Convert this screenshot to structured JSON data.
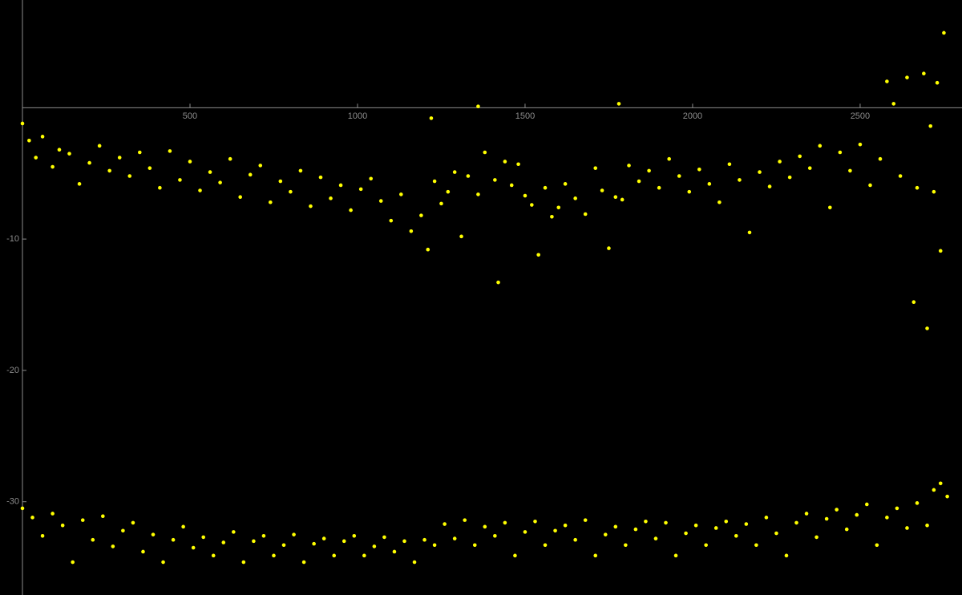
{
  "chart_data": {
    "type": "scatter",
    "color": "#ffff00",
    "xlim": [
      0,
      2804
    ],
    "ylim": [
      -37.1,
      8.2
    ],
    "xticks": [
      500,
      1000,
      1500,
      2000,
      2500
    ],
    "yticks": [
      -10,
      -20,
      -30
    ],
    "x": [
      0,
      20,
      40,
      60,
      90,
      110,
      140,
      170,
      200,
      230,
      260,
      290,
      320,
      350,
      380,
      410,
      440,
      470,
      500,
      530,
      560,
      590,
      620,
      650,
      680,
      710,
      740,
      770,
      800,
      830,
      860,
      890,
      920,
      950,
      980,
      1010,
      1040,
      1070,
      1100,
      1130,
      1160,
      1190,
      1210,
      1230,
      1250,
      1270,
      1290,
      1310,
      1330,
      1360,
      1380,
      1410,
      1420,
      1440,
      1460,
      1480,
      1500,
      1520,
      1540,
      1560,
      1580,
      1600,
      1620,
      1650,
      1680,
      1710,
      1730,
      1750,
      1770,
      1790,
      1810,
      1840,
      1870,
      1900,
      1930,
      1960,
      1990,
      2020,
      2050,
      2080,
      2110,
      2140,
      2170,
      2200,
      2230,
      2260,
      2290,
      2320,
      2350,
      2380,
      2410,
      2440,
      2470,
      2500,
      2530,
      2560,
      2580,
      2600,
      2620,
      2640,
      2660,
      2670,
      2690,
      2700,
      2710,
      2720,
      2730,
      2740,
      2750,
      1360,
      1780,
      1220,
      0,
      30,
      60,
      90,
      120,
      150,
      180,
      210,
      240,
      270,
      300,
      330,
      360,
      390,
      420,
      450,
      480,
      510,
      540,
      570,
      600,
      630,
      660,
      690,
      720,
      750,
      780,
      810,
      840,
      870,
      900,
      930,
      960,
      990,
      1020,
      1050,
      1080,
      1110,
      1140,
      1170,
      1200,
      1230,
      1260,
      1290,
      1320,
      1350,
      1380,
      1410,
      1440,
      1470,
      1500,
      1530,
      1560,
      1590,
      1620,
      1650,
      1680,
      1710,
      1740,
      1770,
      1800,
      1830,
      1860,
      1890,
      1920,
      1950,
      1980,
      2010,
      2040,
      2070,
      2100,
      2130,
      2160,
      2190,
      2220,
      2250,
      2280,
      2310,
      2340,
      2370,
      2400,
      2430,
      2460,
      2490,
      2520,
      2550,
      2580,
      2610,
      2640,
      2670,
      2700,
      2720,
      2740,
      2760
    ],
    "values": [
      -1.2,
      -2.5,
      -3.8,
      -2.2,
      -4.5,
      -3.2,
      -3.5,
      -5.8,
      -4.2,
      -2.9,
      -4.8,
      -3.8,
      -5.2,
      -3.4,
      -4.6,
      -6.1,
      -3.3,
      -5.5,
      -4.1,
      -6.3,
      -4.9,
      -5.7,
      -3.9,
      -6.8,
      -5.1,
      -4.4,
      -7.2,
      -5.6,
      -6.4,
      -4.8,
      -7.5,
      -5.3,
      -6.9,
      -5.9,
      -7.8,
      -6.2,
      -5.4,
      -7.1,
      -8.6,
      -6.6,
      -9.4,
      -8.2,
      -10.8,
      -5.6,
      -7.3,
      -6.4,
      -4.9,
      -9.8,
      -5.2,
      -6.6,
      -3.4,
      -5.5,
      -13.3,
      -4.1,
      -5.9,
      -4.3,
      -6.7,
      -7.4,
      -11.2,
      -6.1,
      -8.3,
      -7.6,
      -5.8,
      -6.9,
      -8.1,
      -4.6,
      -6.3,
      -10.7,
      -6.8,
      -7.0,
      -4.4,
      -5.6,
      -4.8,
      -6.1,
      -3.9,
      -5.2,
      -6.4,
      -4.7,
      -5.8,
      -7.2,
      -4.3,
      -5.5,
      -9.5,
      -4.9,
      -6.0,
      -4.1,
      -5.3,
      -3.7,
      -4.6,
      -2.9,
      -7.6,
      -3.4,
      -4.8,
      -2.8,
      -5.9,
      -3.9,
      2.0,
      0.3,
      -5.2,
      2.3,
      -14.8,
      -6.1,
      2.6,
      -16.8,
      -1.4,
      -6.4,
      1.9,
      -10.9,
      5.7,
      0.1,
      0.3,
      -0.8,
      -30.5,
      -31.2,
      -32.6,
      -30.9,
      -31.8,
      -34.6,
      -31.4,
      -32.9,
      -31.1,
      -33.4,
      -32.2,
      -31.6,
      -33.8,
      -32.5,
      -34.6,
      -32.9,
      -31.9,
      -33.5,
      -32.7,
      -34.1,
      -33.1,
      -32.3,
      -34.6,
      -33.0,
      -32.6,
      -34.1,
      -33.3,
      -32.5,
      -34.6,
      -33.2,
      -32.8,
      -34.1,
      -33.0,
      -32.6,
      -34.1,
      -33.4,
      -32.7,
      -33.8,
      -33.0,
      -34.6,
      -32.9,
      -33.3,
      -31.7,
      -32.8,
      -31.4,
      -33.3,
      -31.9,
      -32.6,
      -31.6,
      -34.1,
      -32.3,
      -31.5,
      -33.3,
      -32.2,
      -31.8,
      -32.9,
      -31.4,
      -34.1,
      -32.5,
      -31.9,
      -33.3,
      -32.1,
      -31.5,
      -32.8,
      -31.6,
      -34.1,
      -32.4,
      -31.8,
      -33.3,
      -32.0,
      -31.5,
      -32.6,
      -31.7,
      -33.3,
      -31.2,
      -32.4,
      -34.1,
      -31.6,
      -30.9,
      -32.7,
      -31.3,
      -30.6,
      -32.1,
      -31.0,
      -30.2,
      -33.3,
      -31.2,
      -30.5,
      -32.0,
      -30.1,
      -31.8,
      -29.1,
      -28.6,
      -29.6
    ]
  }
}
